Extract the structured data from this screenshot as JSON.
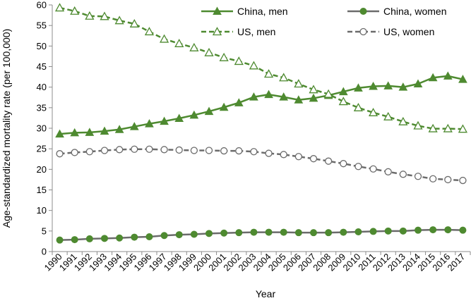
{
  "chart_data": {
    "type": "line",
    "xlabel": "Year",
    "ylabel": "Age-standardized mortality rate (per 100,000)",
    "ylim": [
      0,
      60
    ],
    "yticks": [
      0,
      5,
      10,
      15,
      20,
      25,
      30,
      35,
      40,
      45,
      50,
      55,
      60
    ],
    "grid": false,
    "legend_position": "top",
    "categories": [
      "1990",
      "1991",
      "1992",
      "1993",
      "1994",
      "1995",
      "1996",
      "1997",
      "1998",
      "1999",
      "2000",
      "2001",
      "2002",
      "2003",
      "2004",
      "2005",
      "2006",
      "2007",
      "2008",
      "2009",
      "2010",
      "2011",
      "2012",
      "2013",
      "2014",
      "2015",
      "2016",
      "2017"
    ],
    "series": [
      {
        "name": "China, men",
        "color": "#4e8a30",
        "line_style": "solid",
        "marker": "triangle-filled",
        "values": [
          28.6,
          28.9,
          29.0,
          29.3,
          29.7,
          30.4,
          31.1,
          31.7,
          32.4,
          33.2,
          34.1,
          35.1,
          36.2,
          37.6,
          38.2,
          37.6,
          36.9,
          37.3,
          38.0,
          38.9,
          39.8,
          40.2,
          40.3,
          40.0,
          40.8,
          42.3,
          42.7,
          41.9
        ]
      },
      {
        "name": "China, women",
        "color": "#6b6b6b",
        "line_style": "solid",
        "marker": "circle-filled-green",
        "marker_color": "#4e8a30",
        "values": [
          2.8,
          2.9,
          3.1,
          3.2,
          3.3,
          3.5,
          3.6,
          3.9,
          4.1,
          4.2,
          4.4,
          4.5,
          4.6,
          4.7,
          4.7,
          4.7,
          4.6,
          4.6,
          4.6,
          4.7,
          4.8,
          4.9,
          5.0,
          5.0,
          5.2,
          5.3,
          5.3,
          5.2
        ]
      },
      {
        "name": "US, men",
        "color": "#4e8a30",
        "line_style": "dashed",
        "marker": "triangle-open",
        "values": [
          59.3,
          58.5,
          57.3,
          57.2,
          56.2,
          55.4,
          53.5,
          51.7,
          50.6,
          49.6,
          48.4,
          47.2,
          46.3,
          45.2,
          43.2,
          42.3,
          40.8,
          39.4,
          38.3,
          36.5,
          35.0,
          33.8,
          32.8,
          31.6,
          30.6,
          29.9,
          29.9,
          29.8
        ]
      },
      {
        "name": "US, women",
        "color": "#6b6b6b",
        "line_style": "dashed",
        "marker": "circle-open",
        "values": [
          23.8,
          24.1,
          24.3,
          24.6,
          24.8,
          24.9,
          24.9,
          24.8,
          24.7,
          24.6,
          24.6,
          24.5,
          24.5,
          24.3,
          23.9,
          23.6,
          23.1,
          22.6,
          22.0,
          21.4,
          20.7,
          20.1,
          19.4,
          18.8,
          18.3,
          17.7,
          17.5,
          17.3
        ]
      }
    ]
  }
}
